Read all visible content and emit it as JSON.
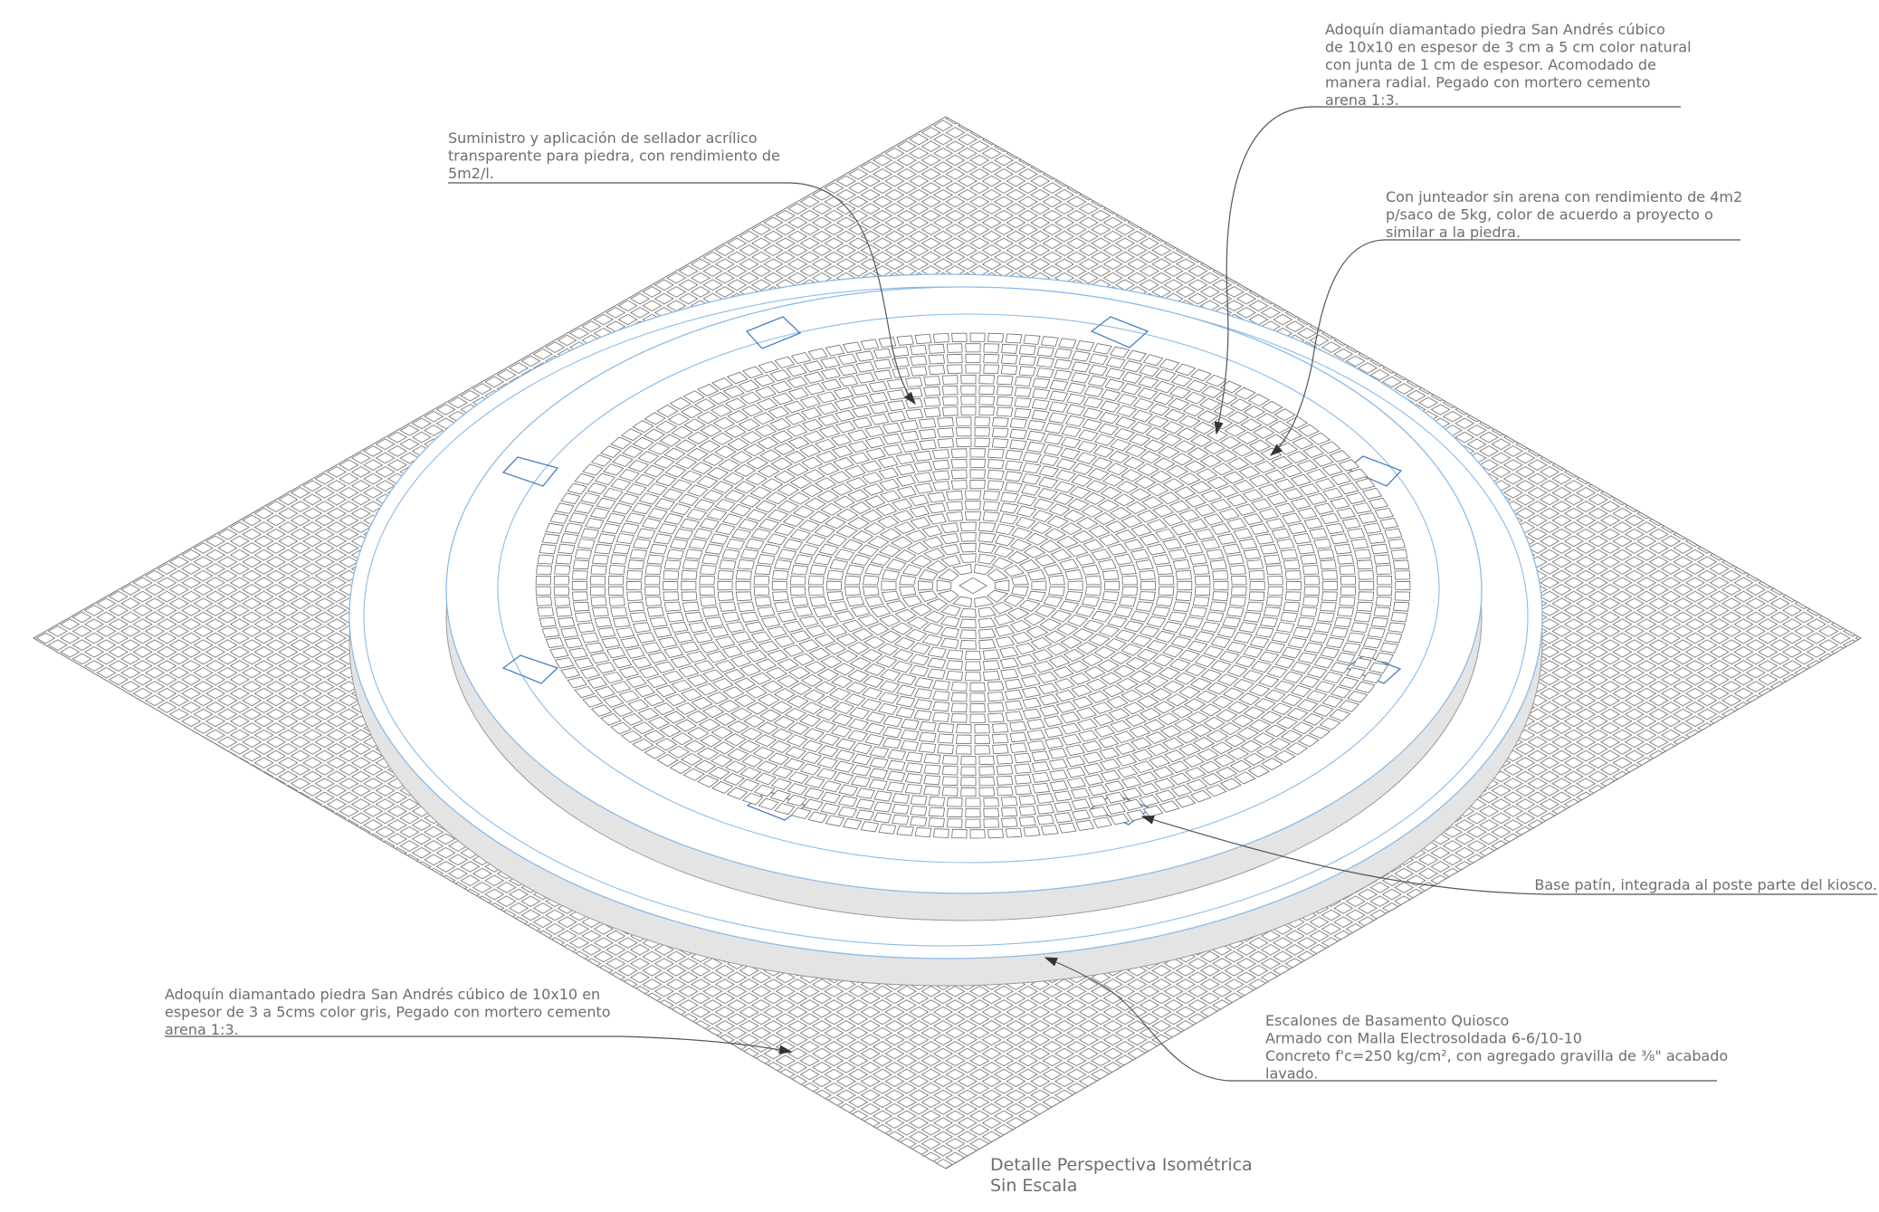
{
  "annotations": [
    {
      "lines": [
        "Adoquín diamantado piedra San Andrés cúbico",
        "de 10x10 en espesor de 3 cm a 5 cm color natural",
        "con junta de 1 cm de espesor. Acomodado de",
        "manera radial. Pegado con mortero cemento",
        "arena 1:3."
      ]
    },
    {
      "lines": [
        "Suministro y aplicación de sellador acrílico",
        "transparente para piedra, con rendimiento de",
        "5m2/l."
      ]
    },
    {
      "lines": [
        "Con junteador sin arena con rendimiento de 4m2",
        "p/saco de 5kg, color de acuerdo a proyecto o",
        "similar a la piedra."
      ]
    },
    {
      "lines": [
        "Base patín, integrada al poste parte del kiosco."
      ]
    },
    {
      "lines": [
        "Adoquín diamantado piedra San Andrés cúbico de 10x10 en",
        "espesor de 3 a 5cms color gris, Pegado con mortero cemento",
        "arena 1:3."
      ]
    },
    {
      "lines": [
        "Escalones de Basamento Quiosco",
        "Armado con Malla Electrosoldada 6-6/10-10",
        "Concreto f'c=250 kg/cm², con agregado gravilla de ⅜\" acabado",
        "lavado."
      ]
    }
  ],
  "caption": {
    "lines": [
      "Detalle Perspectiva Isométrica",
      "Sin Escala"
    ]
  }
}
